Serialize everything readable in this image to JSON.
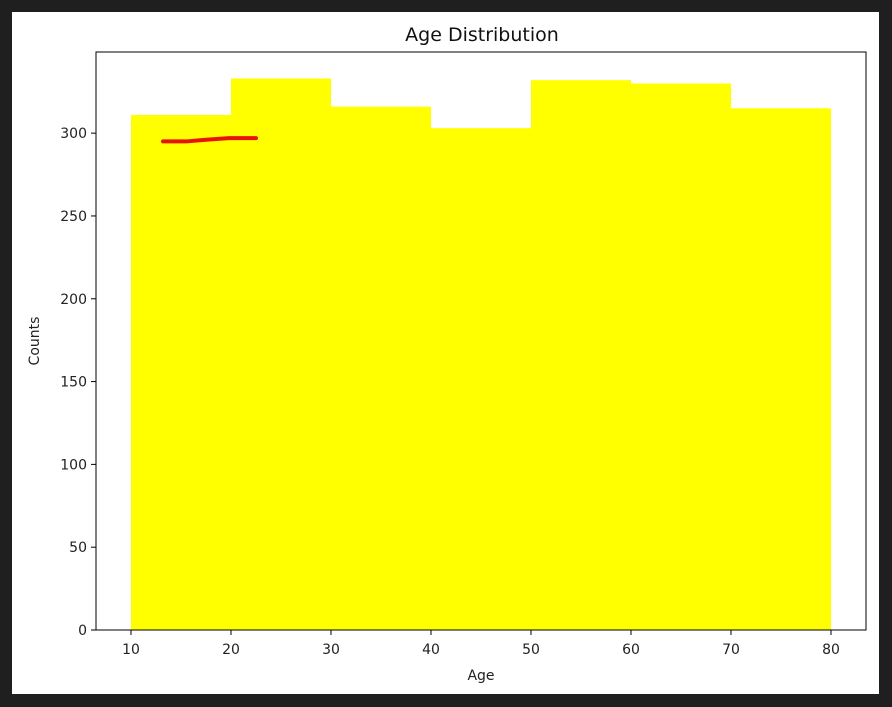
{
  "chart_data": {
    "type": "bar",
    "title": "Age Distribution",
    "xlabel": "Age",
    "ylabel": "Counts",
    "bin_edges": [
      10,
      20,
      30,
      40,
      50,
      60,
      70,
      80
    ],
    "values": [
      311,
      333,
      316,
      303,
      332,
      330,
      315
    ],
    "xlim": [
      6.5,
      83.5
    ],
    "ylim": [
      0,
      349
    ],
    "x_ticks": [
      10,
      20,
      30,
      40,
      50,
      60,
      70,
      80
    ],
    "y_ticks": [
      0,
      50,
      100,
      150,
      200,
      250,
      300
    ],
    "bar_color": "#ffff00",
    "grid": false,
    "annotation": {
      "type": "freehand-stroke",
      "color": "#e8120c",
      "points": [
        [
          13.2,
          295
        ],
        [
          15.5,
          295
        ],
        [
          17.5,
          296
        ],
        [
          19.8,
          297
        ],
        [
          21.3,
          297
        ],
        [
          22.5,
          297
        ]
      ]
    }
  }
}
